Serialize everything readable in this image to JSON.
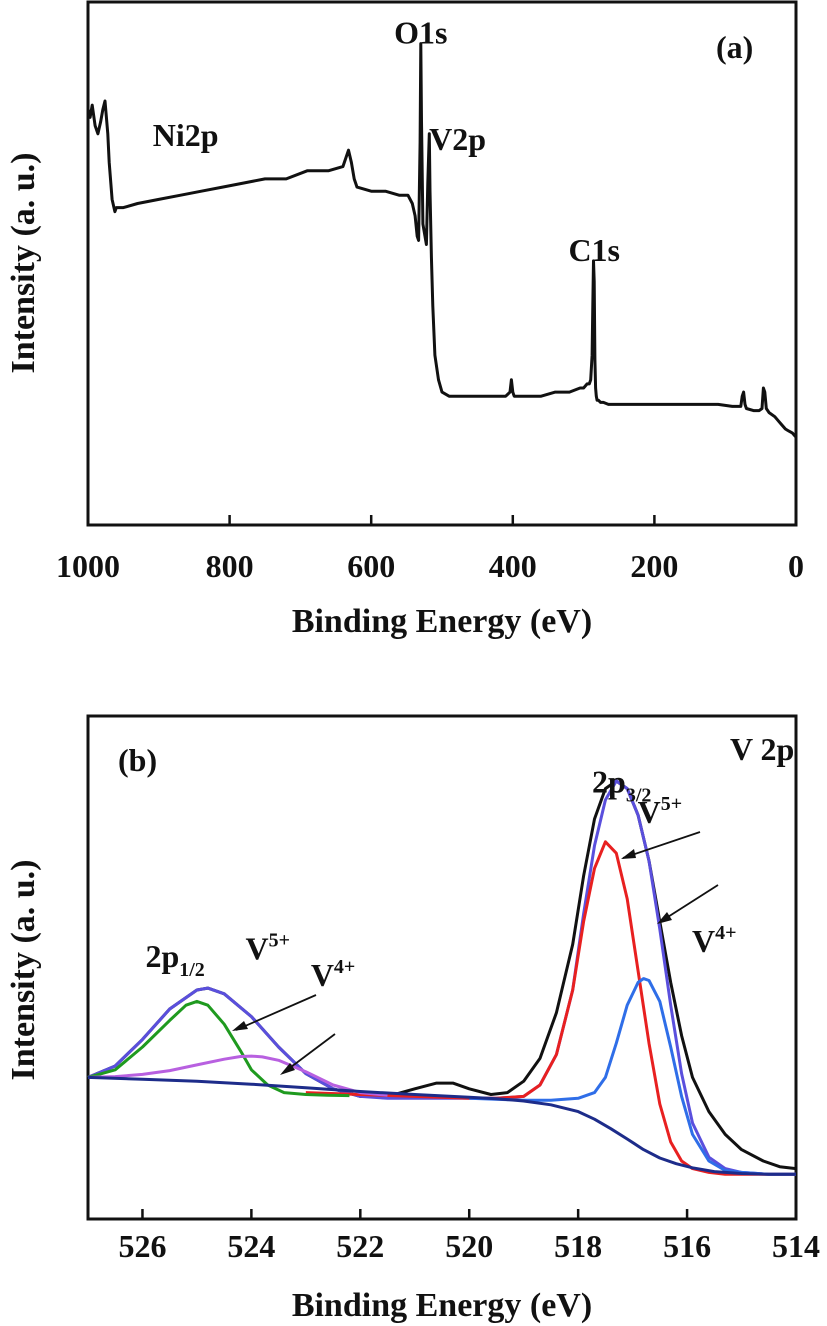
{
  "chart_data": [
    {
      "type": "line",
      "panel_label": "(a)",
      "xlabel": "Binding Energy (eV)",
      "ylabel": "Intensity (a. u.)",
      "xlim": [
        1000,
        0
      ],
      "ylim": [
        0,
        100
      ],
      "x_reversed": true,
      "x_ticks": [
        1000,
        800,
        600,
        400,
        200,
        0
      ],
      "grid": false,
      "annotations": [
        {
          "text": "Ni2p",
          "x": 862,
          "y": 79
        },
        {
          "text": "O1s",
          "x": 530,
          "y": 104
        },
        {
          "text": "V2p",
          "x": 478,
          "y": 78
        },
        {
          "text": "C1s",
          "x": 285,
          "y": 51
        }
      ],
      "series": [
        {
          "color": "#111111",
          "x": [
            1000,
            997,
            994,
            990,
            986,
            982,
            979,
            976,
            974,
            972,
            970,
            966,
            962,
            960,
            950,
            930,
            900,
            870,
            840,
            810,
            780,
            750,
            720,
            690,
            660,
            640,
            632,
            628,
            624,
            620,
            600,
            580,
            560,
            548,
            542,
            538,
            535,
            533,
            531,
            530,
            529,
            527,
            525,
            522,
            520,
            518,
            517,
            515,
            513,
            510,
            505,
            500,
            490,
            470,
            450,
            430,
            410,
            404,
            402,
            400,
            398,
            395,
            380,
            360,
            340,
            320,
            305,
            300,
            295,
            292,
            290,
            288,
            287,
            286,
            285,
            284,
            283,
            282,
            281,
            279,
            276,
            272,
            265,
            250,
            230,
            210,
            190,
            170,
            150,
            130,
            110,
            90,
            78,
            76,
            74,
            72,
            70,
            60,
            52,
            48,
            46,
            44,
            42,
            38,
            30,
            25,
            20,
            15,
            10,
            5,
            0
          ],
          "y": [
            88,
            86,
            89,
            84,
            82,
            85,
            88,
            90,
            86,
            82,
            75,
            66,
            63,
            64,
            64,
            65,
            66,
            67,
            68,
            69,
            70,
            71,
            71,
            73,
            73,
            74,
            78,
            75,
            71,
            69,
            68,
            68,
            67,
            67,
            65,
            62,
            57,
            56,
            80,
            104,
            85,
            60,
            58,
            55,
            70,
            82,
            68,
            52,
            40,
            28,
            22,
            19,
            18,
            18,
            18,
            18,
            18,
            19,
            22,
            19,
            18,
            18,
            18,
            18,
            19,
            19,
            20,
            20,
            21,
            21,
            22,
            28,
            40,
            51,
            46,
            27,
            20,
            18,
            17,
            17,
            16.5,
            16.5,
            16,
            16,
            16,
            16,
            16,
            16,
            16,
            16,
            16,
            15.5,
            15.5,
            18,
            19,
            16,
            15,
            14.5,
            14.5,
            15,
            20,
            19,
            15,
            14,
            13,
            12,
            11,
            10,
            9.5,
            9,
            8
          ]
        }
      ]
    },
    {
      "type": "line",
      "panel_label": "(b)",
      "title": "V 2p",
      "xlabel": "Binding Energy (eV)",
      "ylabel": "Intensity (a. u.)",
      "xlim": [
        527,
        514
      ],
      "ylim": [
        0,
        100
      ],
      "x_reversed": true,
      "x_ticks": [
        526,
        524,
        522,
        520,
        518,
        516,
        514
      ],
      "grid": false,
      "annotations": [
        {
          "text": "2p",
          "sub": "3/2",
          "x": 517.2,
          "y": 102
        },
        {
          "text": "V",
          "sup": "5+",
          "x": 516.5,
          "y": 94
        },
        {
          "text": "V",
          "sup": "4+",
          "x": 515.5,
          "y": 60
        },
        {
          "text": "2p",
          "sub": "1/2",
          "x": 525.4,
          "y": 56
        },
        {
          "text": "V",
          "sup": "5+",
          "x": 523.7,
          "y": 58
        },
        {
          "text": "V",
          "sup": "4+",
          "x": 522.5,
          "y": 51
        }
      ],
      "series": [
        {
          "name": "",
          "color": "#111111",
          "x": [
            527,
            526.5,
            526,
            525.5,
            525,
            524.8,
            524.5,
            524,
            523.5,
            523,
            522.5,
            522,
            521.5,
            521,
            520.6,
            520.3,
            520,
            519.6,
            519.3,
            519,
            518.7,
            518.4,
            518.1,
            517.9,
            517.7,
            517.5,
            517.3,
            517.1,
            516.9,
            516.7,
            516.5,
            516.3,
            516.1,
            515.9,
            515.6,
            515.3,
            515,
            514.6,
            514.3,
            514
          ],
          "y": [
            27,
            30,
            37,
            45,
            50,
            50.5,
            49,
            43,
            35,
            28,
            24,
            22,
            22,
            24,
            25.5,
            25.5,
            24,
            22.5,
            23,
            26,
            32,
            44,
            62,
            80,
            95,
            103,
            105,
            103,
            96,
            84,
            68,
            52,
            38,
            27,
            18,
            12,
            8,
            5,
            3.5,
            3
          ]
        },
        {
          "name": "",
          "color": "#5a4fdd",
          "x": [
            527,
            526.5,
            526,
            525.5,
            525,
            524.8,
            524.5,
            524,
            523.5,
            523,
            522.5,
            522,
            521.5,
            521,
            520,
            519.5,
            519,
            518.7,
            518.4,
            518.1,
            517.9,
            517.7,
            517.5,
            517.3,
            517.1,
            516.9,
            516.7,
            516.5,
            516.3,
            516.1,
            515.9,
            515.6,
            515.3,
            515,
            514.5,
            514
          ],
          "y": [
            27,
            30,
            37,
            45,
            50,
            50.5,
            49,
            43,
            35,
            28,
            24,
            22,
            21.5,
            21.5,
            21.5,
            21.5,
            22,
            25,
            33,
            50,
            70,
            88,
            100,
            105,
            103,
            96,
            84,
            66,
            46,
            28,
            15,
            6,
            3,
            2,
            1.5,
            1.5
          ]
        },
        {
          "name": "",
          "color": "#e82020",
          "x": [
            523,
            522,
            521,
            520,
            519.5,
            519,
            518.7,
            518.4,
            518.1,
            517.9,
            517.7,
            517.5,
            517.3,
            517.1,
            516.9,
            516.7,
            516.5,
            516.3,
            516.1,
            515.9,
            515.6,
            515.3,
            515,
            514.5,
            514
          ],
          "y": [
            23,
            22.5,
            22,
            21.5,
            21.5,
            22,
            25,
            33,
            50,
            68,
            82,
            89,
            86,
            74,
            55,
            36,
            20,
            10,
            5,
            3,
            2,
            1.5,
            1.5,
            1.5,
            1.5
          ]
        },
        {
          "name": "",
          "color": "#2f6ee8",
          "x": [
            520,
            519,
            518.5,
            518,
            517.7,
            517.5,
            517.3,
            517.1,
            516.9,
            516.8,
            516.7,
            516.5,
            516.3,
            516.1,
            515.9,
            515.6,
            515.3,
            515,
            514.5,
            514
          ],
          "y": [
            21.5,
            21,
            21,
            21.5,
            23,
            27,
            36,
            46,
            52,
            53,
            52.5,
            47,
            35,
            22,
            12,
            5,
            2.5,
            2,
            1.5,
            1.5
          ]
        },
        {
          "name": "",
          "color": "#1f9a1f",
          "x": [
            527,
            526.5,
            526,
            525.5,
            525.2,
            525,
            524.8,
            524.5,
            524.2,
            524,
            523.7,
            523.4,
            523,
            522.6,
            522.2
          ],
          "y": [
            27,
            29,
            35,
            42,
            46,
            47,
            46,
            41,
            34,
            29,
            25,
            23,
            22.5,
            22.3,
            22.2
          ]
        },
        {
          "name": "",
          "color": "#b860e0",
          "x": [
            527,
            526.5,
            526,
            525.5,
            525,
            524.5,
            524.2,
            524,
            523.8,
            523.5,
            523,
            522.5,
            522,
            521.5
          ],
          "y": [
            27,
            27.2,
            27.8,
            28.8,
            30.3,
            31.8,
            32.5,
            32.6,
            32.4,
            31.5,
            28.5,
            25,
            23,
            22.3
          ]
        },
        {
          "name": "",
          "color": "#1d2c8a",
          "x": [
            527,
            526,
            525,
            524,
            523,
            522,
            521,
            520,
            519.5,
            519,
            518.5,
            518,
            517.7,
            517.4,
            517.1,
            516.8,
            516.5,
            516.2,
            515.9,
            515.5,
            515,
            514.5,
            514
          ],
          "y": [
            27,
            26.5,
            26,
            25.2,
            24.3,
            23.3,
            22.5,
            21.8,
            21.4,
            20.8,
            19.8,
            18,
            16,
            13.5,
            10.8,
            8,
            5.8,
            4.3,
            3.2,
            2.2,
            1.7,
            1.5,
            1.5
          ]
        }
      ]
    }
  ]
}
